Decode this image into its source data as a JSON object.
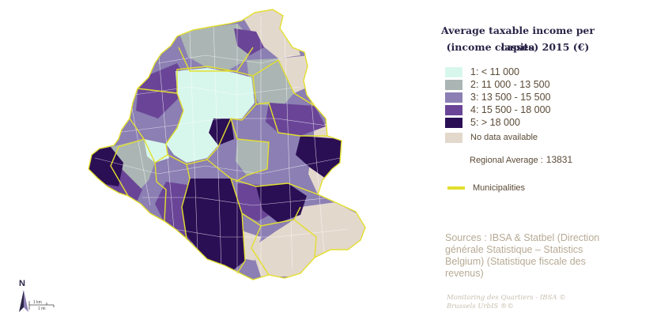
{
  "title_line1": "Average taxable income per capita",
  "title_line2": "(income classes) 2015 (€)",
  "legend": [
    {
      "label": "1: < 11 000",
      "color": "#d8f7ec"
    },
    {
      "label": "2: 11 000 - 13 500",
      "color": "#aab5b4"
    },
    {
      "label": "3: 13 500 - 15 500",
      "color": "#8b7fb3"
    },
    {
      "label": "4: 15 500 - 18 000",
      "color": "#6a4597"
    },
    {
      "label": "5: > 18 000",
      "color": "#2b0f55"
    },
    {
      "label": "No data available",
      "color": "#e3d8cc"
    }
  ],
  "regional_average_label": "Regional Average :",
  "regional_average_value": "13831",
  "municipalities_label": "Municipalities",
  "municipality_color": "#e3df2e",
  "sources": "Sources : IBSA & Statbel (Direction générale Statistique – Statistics Belgium) (Statistique fiscale des revenus)",
  "credit_line1": "Monitoring des Quartiers - IBSA ©",
  "credit_line2": "Brussels UrbIS ®©",
  "north_label": "N",
  "scale_km": "1 km",
  "scale_mi": "1 mi"
}
